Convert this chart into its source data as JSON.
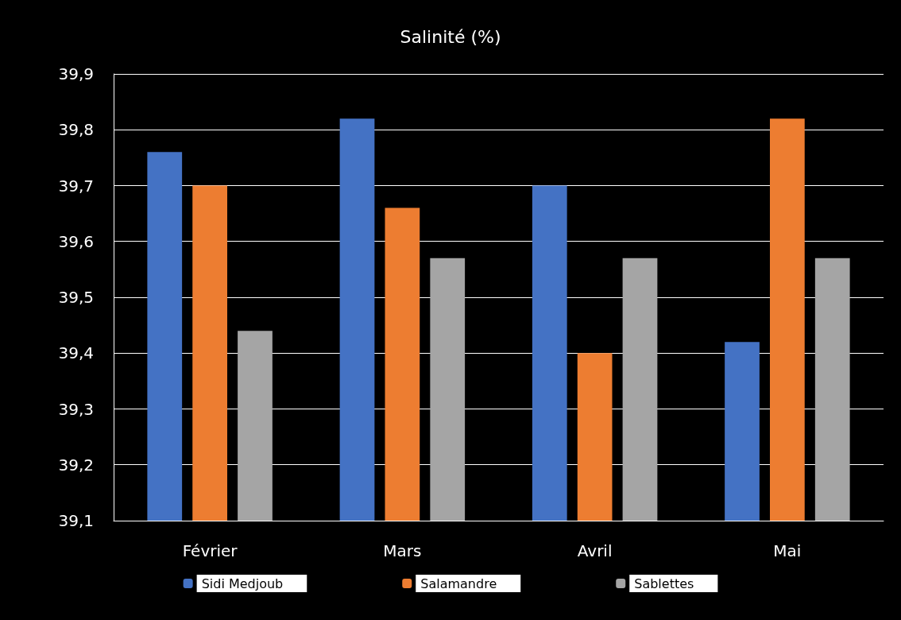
{
  "chart_data": {
    "type": "bar",
    "title": "Salinité (%)",
    "categories": [
      "Février",
      "Mars",
      "Avril",
      "Mai"
    ],
    "series": [
      {
        "name": "Sidi Medjoub",
        "color": "#4472c4",
        "values": [
          39.76,
          39.82,
          39.7,
          39.42
        ]
      },
      {
        "name": "Salamandre",
        "color": "#ed7d31",
        "values": [
          39.7,
          39.66,
          39.4,
          39.82
        ]
      },
      {
        "name": "Sablettes",
        "color": "#a5a5a5",
        "values": [
          39.44,
          39.57,
          39.57,
          39.57
        ]
      }
    ],
    "ylim": [
      39.1,
      39.9
    ],
    "yticks": [
      {
        "value": 39.1,
        "label": "39,1"
      },
      {
        "value": 39.2,
        "label": "39,2"
      },
      {
        "value": 39.3,
        "label": "39,3"
      },
      {
        "value": 39.4,
        "label": "39,4"
      },
      {
        "value": 39.5,
        "label": "39,5"
      },
      {
        "value": 39.6,
        "label": "39,6"
      },
      {
        "value": 39.7,
        "label": "39,7"
      },
      {
        "value": 39.8,
        "label": "39,8"
      },
      {
        "value": 39.9,
        "label": "39,9"
      }
    ],
    "grid": "y",
    "legend": "bottom"
  }
}
